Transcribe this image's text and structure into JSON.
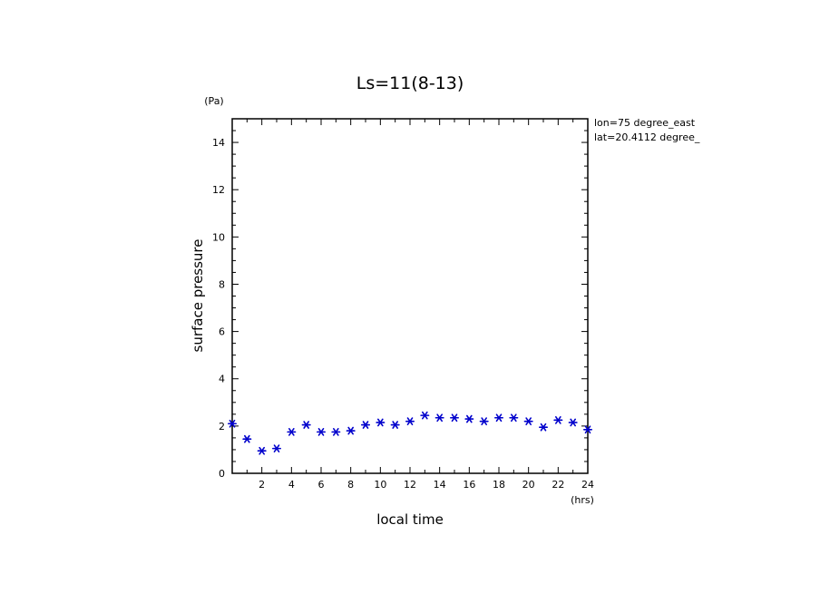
{
  "chart_data": {
    "type": "scatter",
    "title": "Ls=11(8-13)",
    "xlabel": "local time",
    "ylabel": "surface pressure",
    "x_unit": "(hrs)",
    "y_unit": "(Pa)",
    "annotations": [
      "lon=75 degree_east",
      "lat=20.4112 degree_"
    ],
    "xlim": [
      0,
      24
    ],
    "ylim": [
      0,
      15
    ],
    "x_ticks": [
      2,
      4,
      6,
      8,
      10,
      12,
      14,
      16,
      18,
      20,
      22,
      24
    ],
    "y_ticks": [
      0,
      2,
      4,
      6,
      8,
      10,
      12,
      14
    ],
    "x_tick_labels": [
      "2",
      "4",
      "6",
      "8",
      "10",
      "12",
      "14",
      "16",
      "18",
      "20",
      "22",
      "24"
    ],
    "y_tick_labels": [
      "0",
      "2",
      "4",
      "6",
      "8",
      "10",
      "12",
      "14"
    ],
    "grid": false,
    "marker_color": "#0000cc",
    "series": [
      {
        "x": [
          0,
          1,
          2,
          3,
          4,
          5,
          6,
          7,
          8,
          9,
          10,
          11,
          12,
          13,
          14,
          15,
          16,
          17,
          18,
          19,
          20,
          21,
          22,
          23,
          24
        ],
        "values": [
          2.1,
          1.45,
          0.95,
          1.05,
          1.75,
          2.05,
          1.75,
          1.75,
          1.8,
          2.05,
          2.15,
          2.05,
          2.2,
          2.45,
          2.35,
          2.35,
          2.3,
          2.2,
          2.35,
          2.35,
          2.2,
          1.95,
          2.25,
          2.15,
          1.85
        ]
      }
    ]
  }
}
